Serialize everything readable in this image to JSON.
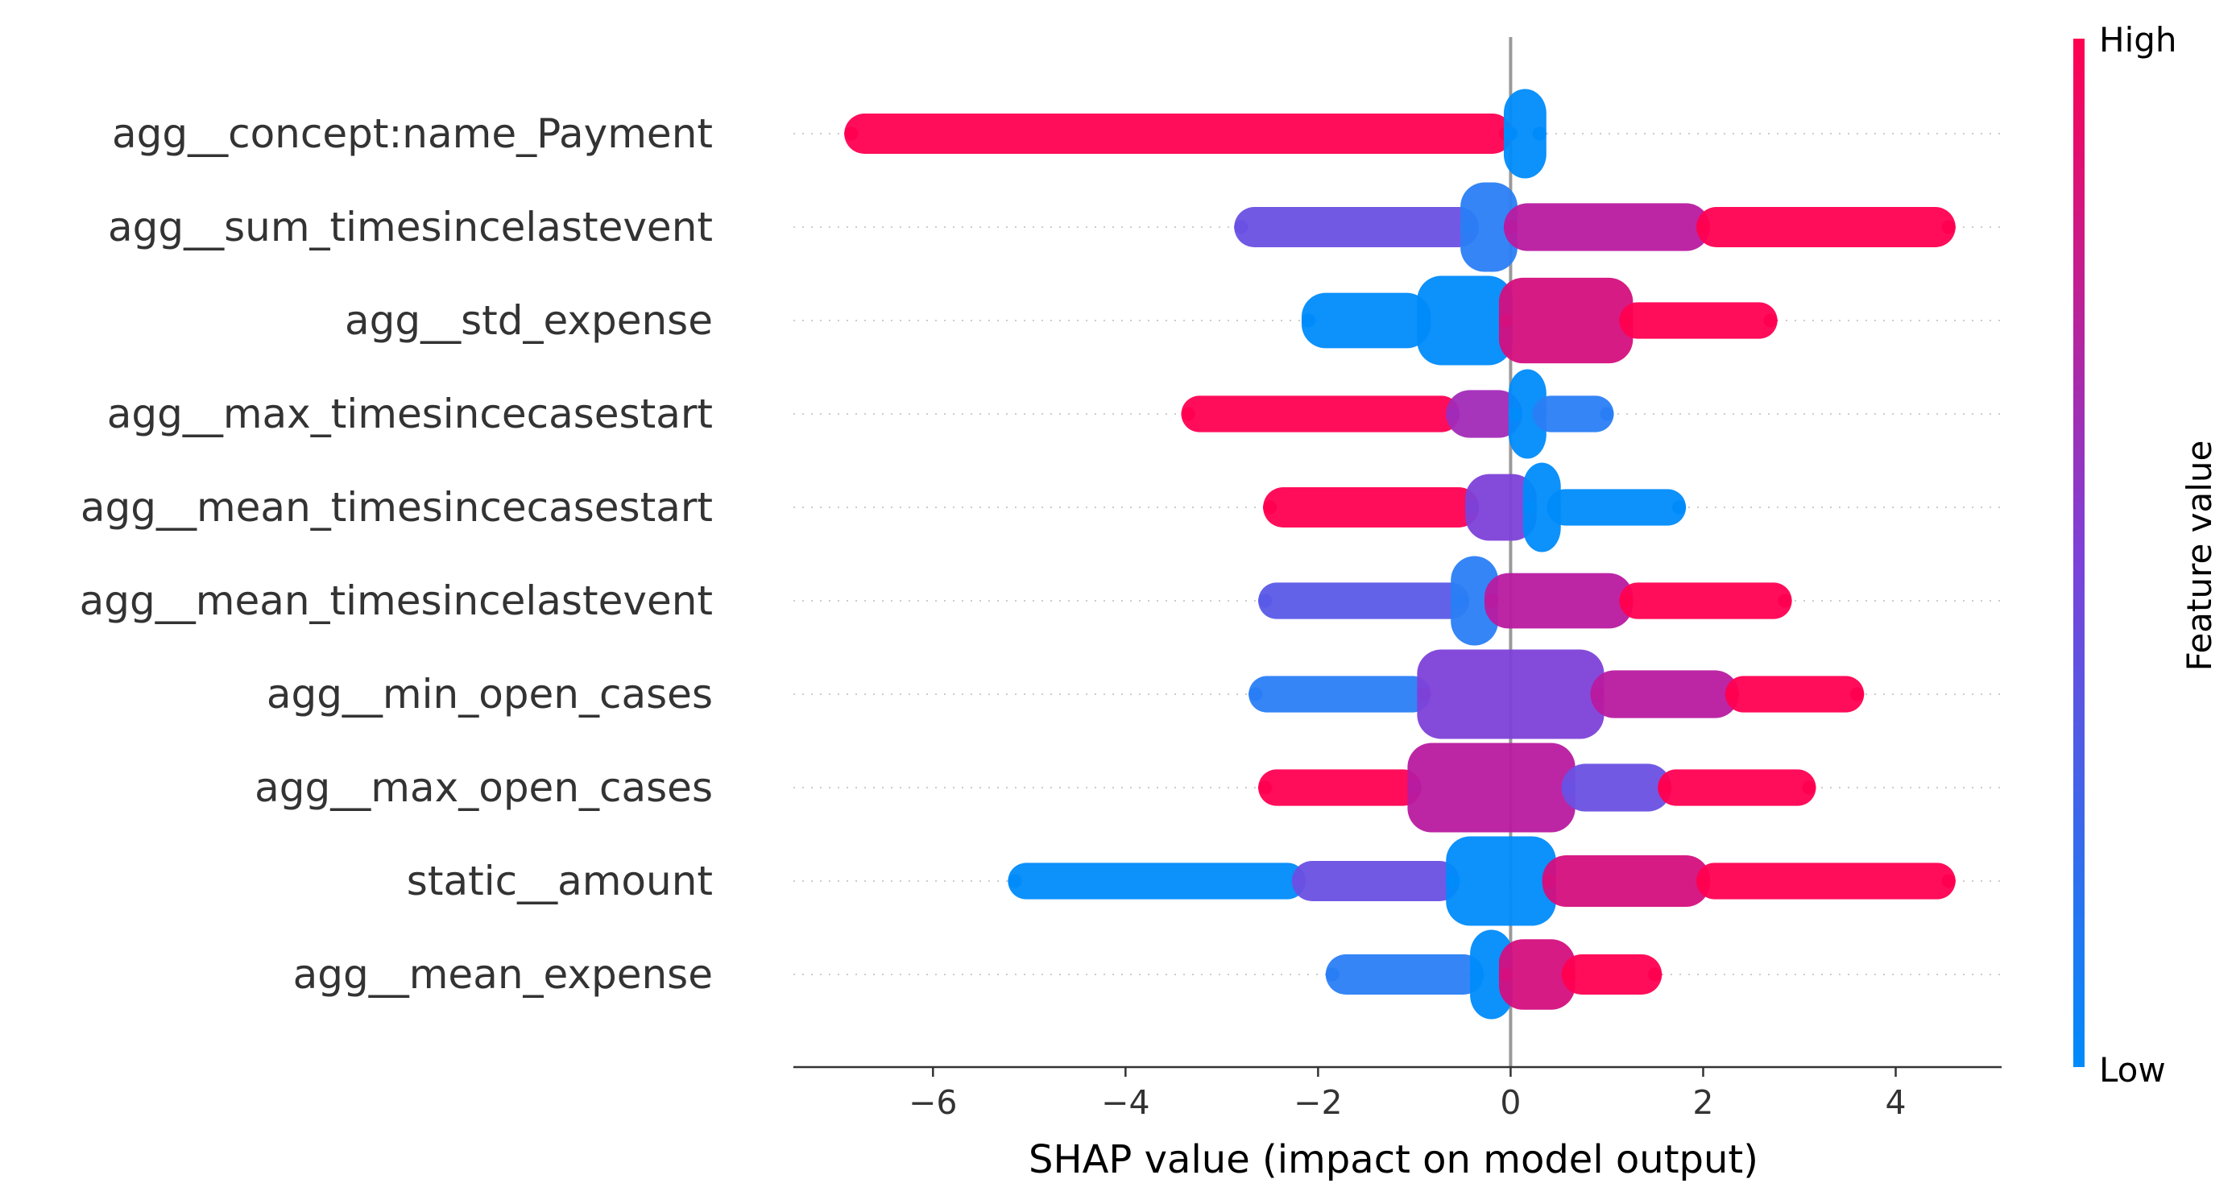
{
  "chart_data": {
    "type": "scatter",
    "subtype": "shap-beeswarm",
    "xlabel": "SHAP value (impact on model output)",
    "xlim": [
      -7.45,
      5.1
    ],
    "xticks": [
      -6,
      -4,
      -2,
      0,
      2,
      4
    ],
    "xtick_labels": [
      "−6",
      "−4",
      "−2",
      "0",
      "2",
      "4"
    ],
    "grid": false,
    "zero_line": true,
    "colorbar": {
      "label": "Feature value",
      "high_label": "High",
      "low_label": "Low",
      "low_color": "#008bfb",
      "mid_color": "#7d41d8",
      "high_color": "#ff0051"
    },
    "features": [
      {
        "name": "agg__concept:name_Payment",
        "min": -6.85,
        "max": 0.3,
        "center": 0.1,
        "low_color_side": "right",
        "segments": [
          {
            "x0": -6.85,
            "x1": -0.05,
            "half_width": 0.35,
            "color": "#ff0051"
          },
          {
            "x0": 0.0,
            "x1": 0.3,
            "half_width": 1.0,
            "color": "#008bfb"
          }
        ]
      },
      {
        "name": "agg__sum_timesincelastevent",
        "min": -2.8,
        "max": 4.55,
        "center": -0.25,
        "segments": [
          {
            "x0": -2.8,
            "x1": -0.4,
            "half_width": 0.35,
            "color": "#6a50e3"
          },
          {
            "x0": -0.45,
            "x1": 0.0,
            "half_width": 1.0,
            "color": "#2a7ef5"
          },
          {
            "x0": 0.0,
            "x1": 2.0,
            "half_width": 0.45,
            "color": "#b81aa0"
          },
          {
            "x0": 2.0,
            "x1": 4.55,
            "half_width": 0.35,
            "color": "#ff0051"
          }
        ]
      },
      {
        "name": "agg__std_expense",
        "min": -2.1,
        "max": 2.7,
        "center": -0.5,
        "segments": [
          {
            "x0": -2.1,
            "x1": -0.9,
            "half_width": 0.55,
            "color": "#008bfb"
          },
          {
            "x0": -0.9,
            "x1": -0.05,
            "half_width": 1.0,
            "color": "#008bfb"
          },
          {
            "x0": -0.05,
            "x1": 1.2,
            "half_width": 0.95,
            "color": "#d40f7e"
          },
          {
            "x0": 1.2,
            "x1": 2.7,
            "half_width": 0.3,
            "color": "#ff0051"
          }
        ]
      },
      {
        "name": "agg__max_timesincecasestart",
        "min": -3.35,
        "max": 1.0,
        "center": 0.15,
        "segments": [
          {
            "x0": -3.35,
            "x1": -0.6,
            "half_width": 0.3,
            "color": "#ff0051"
          },
          {
            "x0": -0.6,
            "x1": 0.05,
            "half_width": 0.45,
            "color": "#a22ab8"
          },
          {
            "x0": 0.05,
            "x1": 0.3,
            "half_width": 1.0,
            "color": "#008bfb"
          },
          {
            "x0": 0.3,
            "x1": 1.0,
            "half_width": 0.3,
            "color": "#2a7ef5"
          }
        ]
      },
      {
        "name": "agg__mean_timesincecasestart",
        "min": -2.5,
        "max": 1.75,
        "center": 0.3,
        "segments": [
          {
            "x0": -2.5,
            "x1": -0.4,
            "half_width": 0.35,
            "color": "#ff0051"
          },
          {
            "x0": -0.4,
            "x1": 0.2,
            "half_width": 0.7,
            "color": "#7d41d8"
          },
          {
            "x0": 0.2,
            "x1": 0.45,
            "half_width": 1.0,
            "color": "#008bfb"
          },
          {
            "x0": 0.45,
            "x1": 1.75,
            "half_width": 0.3,
            "color": "#008bfb"
          }
        ]
      },
      {
        "name": "agg__mean_timesincelastevent",
        "min": -2.55,
        "max": 2.85,
        "center": -0.4,
        "segments": [
          {
            "x0": -2.55,
            "x1": -0.5,
            "half_width": 0.3,
            "color": "#5a5ae8"
          },
          {
            "x0": -0.55,
            "x1": -0.2,
            "half_width": 1.0,
            "color": "#2a7ef5"
          },
          {
            "x0": -0.2,
            "x1": 1.2,
            "half_width": 0.55,
            "color": "#b81aa0"
          },
          {
            "x0": 1.2,
            "x1": 2.85,
            "half_width": 0.3,
            "color": "#ff0051"
          }
        ]
      },
      {
        "name": "agg__min_open_cases",
        "min": -2.65,
        "max": 3.6,
        "center": 0.0,
        "segments": [
          {
            "x0": -2.65,
            "x1": -0.9,
            "half_width": 0.3,
            "color": "#2a7ef5"
          },
          {
            "x0": -0.9,
            "x1": 0.9,
            "half_width": 1.0,
            "color": "#7d41d8"
          },
          {
            "x0": 0.9,
            "x1": 2.3,
            "half_width": 0.45,
            "color": "#b81aa0"
          },
          {
            "x0": 2.3,
            "x1": 3.6,
            "half_width": 0.3,
            "color": "#ff0051"
          }
        ]
      },
      {
        "name": "agg__max_open_cases",
        "min": -2.55,
        "max": 3.1,
        "center": -0.1,
        "segments": [
          {
            "x0": -2.55,
            "x1": -1.0,
            "half_width": 0.3,
            "color": "#ff0051"
          },
          {
            "x0": -1.0,
            "x1": 0.6,
            "half_width": 1.0,
            "color": "#b81aa0"
          },
          {
            "x0": 0.6,
            "x1": 1.6,
            "half_width": 0.45,
            "color": "#6a50e3"
          },
          {
            "x0": 1.6,
            "x1": 3.1,
            "half_width": 0.3,
            "color": "#ff0051"
          }
        ]
      },
      {
        "name": "static__amount",
        "min": -5.15,
        "max": 4.55,
        "center": -0.1,
        "segments": [
          {
            "x0": -5.15,
            "x1": -2.2,
            "half_width": 0.3,
            "color": "#008bfb"
          },
          {
            "x0": -2.2,
            "x1": -0.6,
            "half_width": 0.35,
            "color": "#6a50e3"
          },
          {
            "x0": -0.6,
            "x1": 0.4,
            "half_width": 1.0,
            "color": "#008bfb"
          },
          {
            "x0": 0.4,
            "x1": 2.0,
            "half_width": 0.5,
            "color": "#d40f7e"
          },
          {
            "x0": 2.0,
            "x1": 4.55,
            "half_width": 0.3,
            "color": "#ff0051"
          }
        ]
      },
      {
        "name": "agg__mean_expense",
        "min": -1.85,
        "max": 1.5,
        "center": -0.2,
        "segments": [
          {
            "x0": -1.85,
            "x1": -0.35,
            "half_width": 0.35,
            "color": "#2a7ef5"
          },
          {
            "x0": -0.35,
            "x1": -0.05,
            "half_width": 1.0,
            "color": "#008bfb"
          },
          {
            "x0": -0.05,
            "x1": 0.6,
            "half_width": 0.75,
            "color": "#d40f7e"
          },
          {
            "x0": 0.6,
            "x1": 1.5,
            "half_width": 0.35,
            "color": "#ff0051"
          }
        ]
      }
    ]
  }
}
